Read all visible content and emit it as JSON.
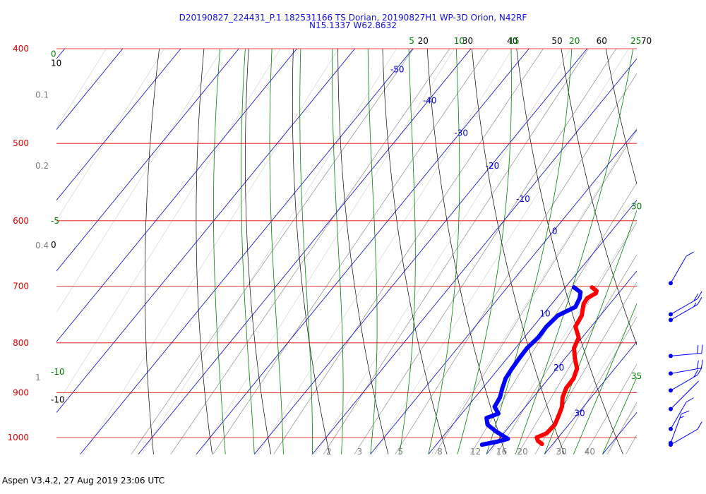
{
  "header": {
    "line1": "D20190827_224431_P.1 182531166 TS Dorian, 20190827H1 WP-3D Orion, N42RF",
    "line2": "N15.1337 W62.8632"
  },
  "footer": {
    "text": "Aspen V3.4.2, 27 Aug 2019  23:06 UTC"
  },
  "colors": {
    "isobar": "#e00000",
    "isotherm": "#0000d0",
    "dry_adiabat": "#000000",
    "moist_adiabat": "#008000",
    "mixing_ratio": "#909090",
    "temperature": "#ff0000",
    "dewpoint": "#0000ff",
    "wind": "#0000ff"
  },
  "chart_data": {
    "type": "skew-t",
    "title": "D20190827_224431_P.1 182531166 TS Dorian, 20190827H1 WP-3D Orion, N42RF",
    "subtitle": "N15.1337 W62.8632",
    "pressure_levels_hpa": [
      "400",
      "500",
      "600",
      "700",
      "800",
      "900",
      "1000"
    ],
    "ylim_hpa": [
      1030,
      400
    ],
    "isotherm_labels_c": [
      {
        "value": "-50",
        "p": 420
      },
      {
        "value": "-40",
        "p": 452
      },
      {
        "value": "-30",
        "p": 488
      },
      {
        "value": "-20",
        "p": 527
      },
      {
        "value": "-10",
        "p": 570
      },
      {
        "value": "0",
        "p": 615
      },
      {
        "value": "10",
        "p": 747
      },
      {
        "value": "20",
        "p": 848
      },
      {
        "value": "30",
        "p": 944
      }
    ],
    "mixing_ratio_labels_gkg": [
      "2",
      "3",
      "5",
      "8",
      "12",
      "16",
      "20",
      "30",
      "40"
    ],
    "dry_adiabat_top_labels": [
      "20",
      "30",
      "40",
      "50",
      "60",
      "70"
    ],
    "dry_adiabat_left_labels": [
      {
        "value": "10",
        "p": 414
      },
      {
        "value": "0",
        "p": 635
      },
      {
        "value": "-10",
        "p": 915
      }
    ],
    "moist_adiabat_top_labels": [
      "5",
      "10",
      "15",
      "20",
      "25"
    ],
    "moist_adiabat_left_labels": [
      {
        "value": "0",
        "p": 405
      },
      {
        "value": "-5",
        "p": 600
      },
      {
        "value": "-10",
        "p": 857
      }
    ],
    "moist_adiabat_right_labels": [
      {
        "value": "30",
        "p": 580
      },
      {
        "value": "35",
        "p": 865
      }
    ],
    "grey_left_labels": [
      {
        "value": "0.1",
        "p": 446
      },
      {
        "value": "0.2",
        "p": 527
      },
      {
        "value": "0.4",
        "p": 636
      },
      {
        "value": "1",
        "p": 868
      }
    ],
    "temperature_profile": [
      {
        "p": 702,
        "t": 14.6
      },
      {
        "p": 708,
        "t": 15.9
      },
      {
        "p": 712,
        "t": 16.1
      },
      {
        "p": 720,
        "t": 15.3
      },
      {
        "p": 730,
        "t": 15.5
      },
      {
        "p": 750,
        "t": 16.8
      },
      {
        "p": 770,
        "t": 17.3
      },
      {
        "p": 790,
        "t": 19.4
      },
      {
        "p": 810,
        "t": 20.1
      },
      {
        "p": 830,
        "t": 21.7
      },
      {
        "p": 850,
        "t": 23.5
      },
      {
        "p": 870,
        "t": 24.3
      },
      {
        "p": 890,
        "t": 24.4
      },
      {
        "p": 910,
        "t": 25.1
      },
      {
        "p": 930,
        "t": 26.3
      },
      {
        "p": 950,
        "t": 27.0
      },
      {
        "p": 970,
        "t": 27.6
      },
      {
        "p": 990,
        "t": 27.4
      },
      {
        "p": 1000,
        "t": 26.3
      },
      {
        "p": 1008,
        "t": 27.0
      },
      {
        "p": 1015,
        "t": 28.1
      }
    ],
    "dewpoint_profile": [
      {
        "p": 702,
        "td": 11.5
      },
      {
        "p": 710,
        "td": 13.3
      },
      {
        "p": 720,
        "td": 14.0
      },
      {
        "p": 735,
        "td": 14.5
      },
      {
        "p": 750,
        "td": 12.7
      },
      {
        "p": 770,
        "td": 12.3
      },
      {
        "p": 790,
        "td": 12.4
      },
      {
        "p": 810,
        "td": 12.0
      },
      {
        "p": 830,
        "td": 12.1
      },
      {
        "p": 850,
        "td": 12.3
      },
      {
        "p": 870,
        "td": 12.6
      },
      {
        "p": 890,
        "td": 13.4
      },
      {
        "p": 910,
        "td": 14.3
      },
      {
        "p": 930,
        "td": 14.7
      },
      {
        "p": 945,
        "td": 16.3
      },
      {
        "p": 955,
        "td": 14.9
      },
      {
        "p": 970,
        "td": 16.0
      },
      {
        "p": 985,
        "td": 18.3
      },
      {
        "p": 995,
        "td": 20.1
      },
      {
        "p": 1003,
        "td": 21.5
      },
      {
        "p": 1010,
        "td": 20.0
      },
      {
        "p": 1017,
        "td": 17.9
      }
    ],
    "wind_barbs": [
      {
        "p": 695,
        "dir": 330,
        "kt": 10
      },
      {
        "p": 748,
        "dir": 300,
        "kt": 20
      },
      {
        "p": 758,
        "dir": 300,
        "kt": 15
      },
      {
        "p": 825,
        "dir": 275,
        "kt": 20
      },
      {
        "p": 860,
        "dir": 280,
        "kt": 20
      },
      {
        "p": 895,
        "dir": 300,
        "kt": 20
      },
      {
        "p": 935,
        "dir": 315,
        "kt": 15
      },
      {
        "p": 980,
        "dir": 330,
        "kt": 10
      },
      {
        "p": 1013,
        "dir": 340,
        "kt": 15
      },
      {
        "p": 1017,
        "dir": 300,
        "kt": 10
      }
    ]
  }
}
